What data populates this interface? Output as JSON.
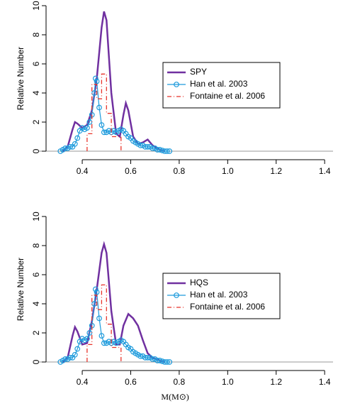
{
  "chart_data": [
    {
      "type": "line",
      "y_label": "Relative Number",
      "xlim": [
        0.28,
        1.42
      ],
      "xticks": [
        0.4,
        0.6,
        0.8,
        {
          "value": 1.0,
          "label": "1.0"
        },
        1.2,
        1.4
      ],
      "ylim": [
        0,
        10
      ],
      "yticks": [
        0,
        2,
        4,
        6,
        8,
        10
      ],
      "legend_position": "right",
      "series": [
        {
          "name": "SPY",
          "color": "#7030a0",
          "x": [
            0.32,
            0.34,
            0.36,
            0.37,
            0.38,
            0.4,
            0.42,
            0.44,
            0.46,
            0.48,
            0.49,
            0.5,
            0.52,
            0.54,
            0.555,
            0.57,
            0.58,
            0.59,
            0.61,
            0.63,
            0.65,
            0.67,
            0.69,
            0.72,
            0.74
          ],
          "values": [
            0,
            0.3,
            1.5,
            2.0,
            1.9,
            1.6,
            1.8,
            2.8,
            5.0,
            8.5,
            9.6,
            9.0,
            4.0,
            1.2,
            1.0,
            2.5,
            3.3,
            2.8,
            1.0,
            0.5,
            0.6,
            0.8,
            0.4,
            0.1,
            0
          ]
        },
        {
          "name": "Han et al. 2003",
          "color": "#1e9bdc",
          "marker": "circle",
          "x": [
            0.31,
            0.32,
            0.33,
            0.34,
            0.35,
            0.36,
            0.37,
            0.38,
            0.39,
            0.4,
            0.41,
            0.42,
            0.43,
            0.44,
            0.45,
            0.455,
            0.46,
            0.47,
            0.48,
            0.49,
            0.5,
            0.51,
            0.52,
            0.53,
            0.54,
            0.55,
            0.56,
            0.57,
            0.58,
            0.59,
            0.6,
            0.61,
            0.62,
            0.63,
            0.64,
            0.65,
            0.66,
            0.67,
            0.68,
            0.69,
            0.7,
            0.71,
            0.72,
            0.73,
            0.74,
            0.75,
            0.76
          ],
          "values": [
            0,
            0.1,
            0.2,
            0.2,
            0.3,
            0.3,
            0.5,
            0.9,
            1.4,
            1.6,
            1.5,
            1.6,
            2.0,
            2.5,
            4.0,
            5.0,
            4.8,
            3.0,
            1.8,
            1.3,
            1.3,
            1.4,
            1.3,
            1.4,
            1.3,
            1.4,
            1.5,
            1.4,
            1.2,
            1.0,
            0.9,
            0.7,
            0.6,
            0.5,
            0.4,
            0.4,
            0.3,
            0.3,
            0.3,
            0.2,
            0.2,
            0.1,
            0.1,
            0.05,
            0,
            0,
            0
          ]
        },
        {
          "name": "Fontaine et al. 2006",
          "color": "#e8332a",
          "line_style": "dash-dot",
          "x": [
            0.42,
            0.42,
            0.44,
            0.44,
            0.46,
            0.46,
            0.48,
            0.48,
            0.5,
            0.5,
            0.52,
            0.52,
            0.56,
            0.56
          ],
          "values": [
            0,
            1.2,
            1.2,
            4.6,
            4.6,
            3.6,
            3.6,
            5.3,
            5.3,
            2.6,
            2.6,
            1.0,
            1.0,
            0
          ]
        }
      ]
    },
    {
      "type": "line",
      "y_label": "Relative Number",
      "x_label": "M(M⊙)",
      "xlim": [
        0.28,
        1.42
      ],
      "xticks": [
        0.4,
        0.6,
        0.8,
        {
          "value": 1.0,
          "label": "1.0"
        },
        1.2,
        1.4
      ],
      "ylim": [
        0,
        10
      ],
      "yticks": [
        0,
        2,
        4,
        6,
        8,
        10
      ],
      "legend_position": "right",
      "series": [
        {
          "name": "HQS",
          "color": "#7030a0",
          "x": [
            0.32,
            0.34,
            0.36,
            0.37,
            0.38,
            0.4,
            0.42,
            0.44,
            0.46,
            0.48,
            0.49,
            0.5,
            0.52,
            0.54,
            0.555,
            0.57,
            0.59,
            0.61,
            0.63,
            0.65,
            0.67,
            0.69,
            0.72,
            0.74
          ],
          "values": [
            0,
            0.3,
            1.8,
            2.4,
            2.1,
            1.2,
            1.3,
            2.8,
            5.0,
            7.5,
            8.1,
            7.5,
            3.5,
            1.2,
            1.2,
            2.5,
            3.3,
            3.0,
            2.5,
            1.5,
            0.6,
            0.3,
            0.1,
            0
          ]
        },
        {
          "name": "Han et al. 2003",
          "color": "#1e9bdc",
          "marker": "circle",
          "x": [
            0.31,
            0.32,
            0.33,
            0.34,
            0.35,
            0.36,
            0.37,
            0.38,
            0.39,
            0.4,
            0.41,
            0.42,
            0.43,
            0.44,
            0.45,
            0.455,
            0.46,
            0.47,
            0.48,
            0.49,
            0.5,
            0.51,
            0.52,
            0.53,
            0.54,
            0.55,
            0.56,
            0.57,
            0.58,
            0.59,
            0.6,
            0.61,
            0.62,
            0.63,
            0.64,
            0.65,
            0.66,
            0.67,
            0.68,
            0.69,
            0.7,
            0.71,
            0.72,
            0.73,
            0.74,
            0.75,
            0.76
          ],
          "values": [
            0,
            0.1,
            0.2,
            0.2,
            0.3,
            0.3,
            0.5,
            0.9,
            1.4,
            1.6,
            1.5,
            1.6,
            2.0,
            2.5,
            4.0,
            5.0,
            4.8,
            3.0,
            1.8,
            1.3,
            1.3,
            1.4,
            1.3,
            1.4,
            1.3,
            1.4,
            1.5,
            1.4,
            1.2,
            1.0,
            0.9,
            0.7,
            0.6,
            0.5,
            0.4,
            0.4,
            0.3,
            0.3,
            0.3,
            0.2,
            0.2,
            0.1,
            0.1,
            0.05,
            0,
            0,
            0
          ]
        },
        {
          "name": "Fontaine et al. 2006",
          "color": "#e8332a",
          "line_style": "dash-dot",
          "x": [
            0.42,
            0.42,
            0.44,
            0.44,
            0.46,
            0.46,
            0.48,
            0.48,
            0.5,
            0.5,
            0.52,
            0.52,
            0.56,
            0.56
          ],
          "values": [
            0,
            1.2,
            1.2,
            4.6,
            4.6,
            3.6,
            3.6,
            5.3,
            5.3,
            2.6,
            2.6,
            1.0,
            1.0,
            0
          ]
        }
      ]
    }
  ]
}
